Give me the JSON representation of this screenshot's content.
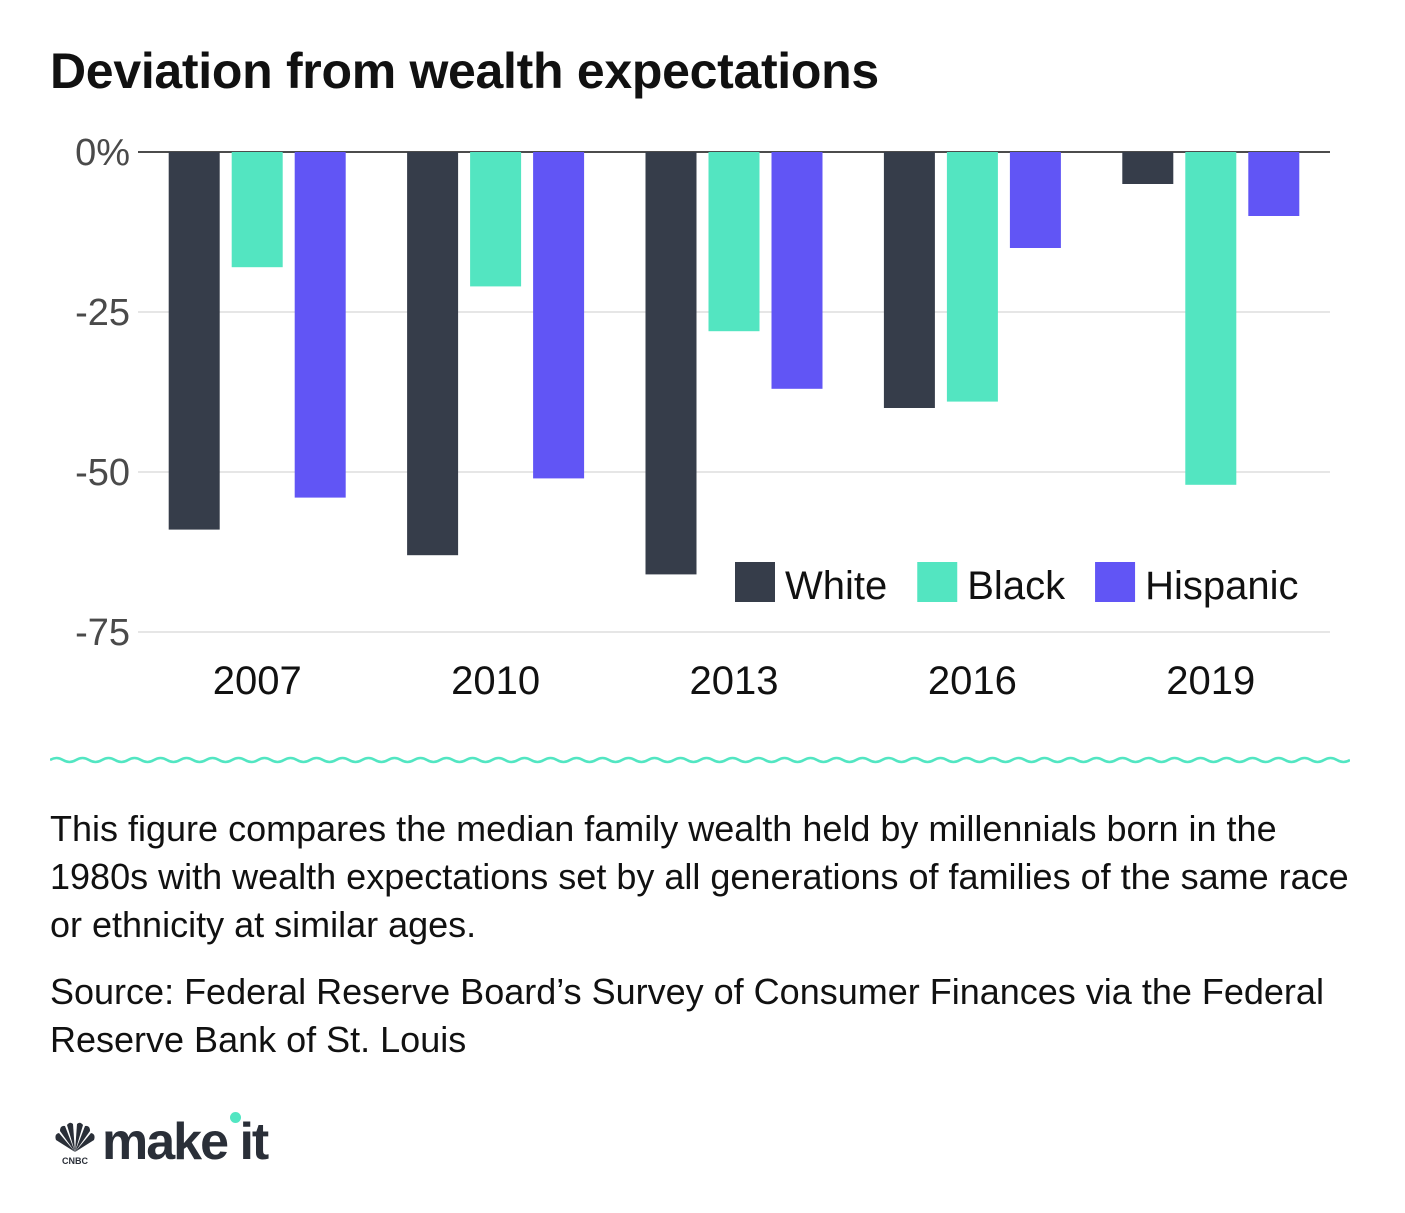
{
  "title": "Deviation from wealth expectations",
  "chart_data": {
    "type": "bar",
    "categories": [
      "2007",
      "2010",
      "2013",
      "2016",
      "2019"
    ],
    "series": [
      {
        "name": "White",
        "color": "#363d4a",
        "values": [
          -59,
          -63,
          -66,
          -40,
          -5
        ]
      },
      {
        "name": "Black",
        "color": "#53e5c1",
        "values": [
          -18,
          -21,
          -28,
          -39,
          -52
        ]
      },
      {
        "name": "Hispanic",
        "color": "#6155f5",
        "values": [
          -54,
          -51,
          -37,
          -15,
          -10
        ]
      }
    ],
    "ylim": [
      -75,
      0
    ],
    "yticks": [
      0,
      -25,
      -50,
      -75
    ],
    "ytick_labels": [
      "0%",
      "-25",
      "-50",
      "-75"
    ],
    "grid": true,
    "legend_position": "bottom-right",
    "xlabel": "",
    "ylabel": ""
  },
  "description": "This figure compares the median family wealth held by millennials born in the 1980s with wealth expectations set by all generations of families of the same race or ethnicity at similar ages.",
  "source": "Source: Federal Reserve Board’s Survey of Consumer Finances via the Federal Reserve Bank of St. Louis",
  "logo": {
    "brand": "CNBC",
    "text": "make it",
    "accent_color": "#52e6c2"
  }
}
